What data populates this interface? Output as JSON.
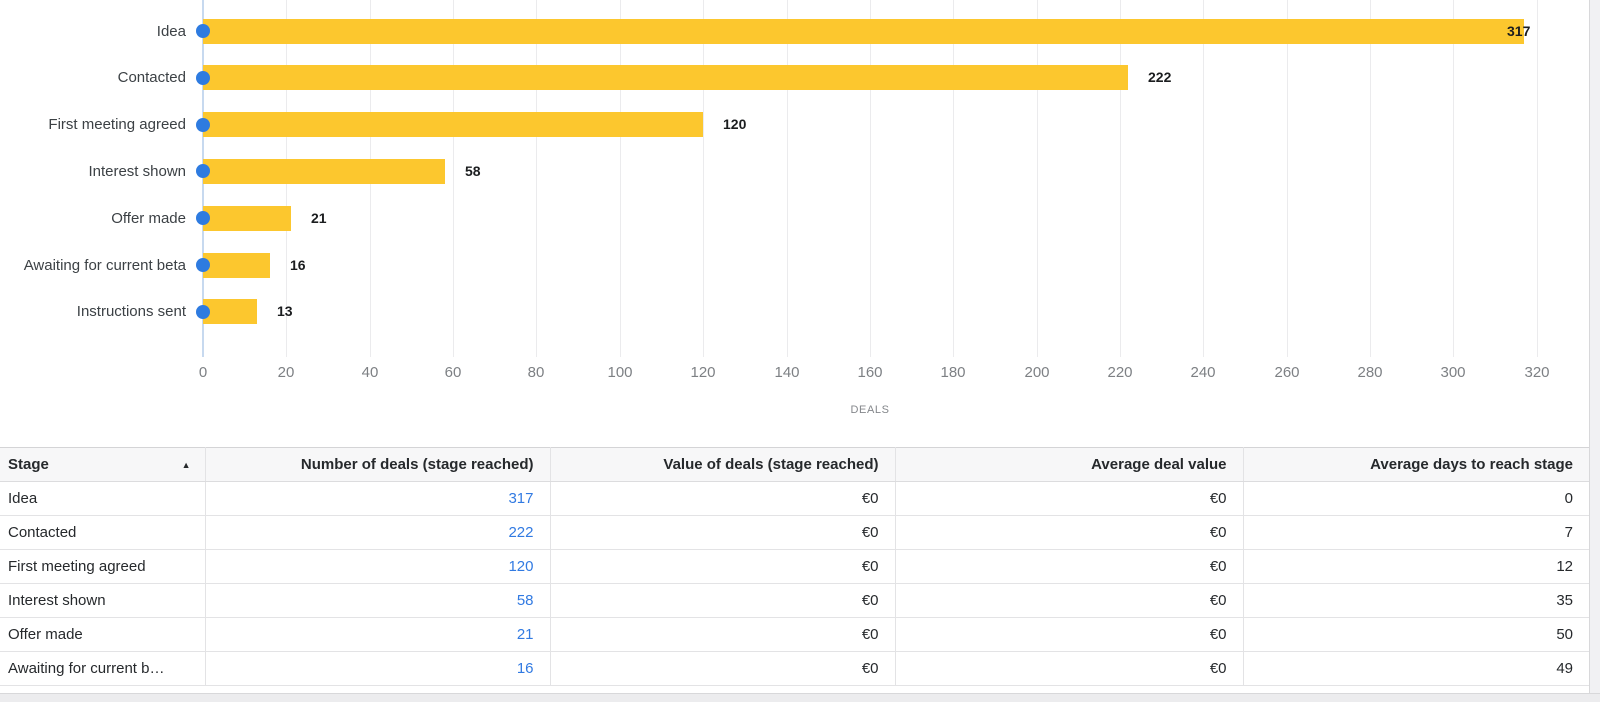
{
  "chart_data": {
    "type": "bar",
    "orientation": "horizontal",
    "title": "",
    "categories": [
      "Idea",
      "Contacted",
      "First meeting agreed",
      "Interest shown",
      "Offer made",
      "Awaiting for current beta",
      "Instructions sent"
    ],
    "values": [
      317,
      222,
      120,
      58,
      21,
      16,
      13
    ],
    "data_labels": [
      "317",
      "222",
      "120",
      "58",
      "21",
      "16",
      "13"
    ],
    "xlabel": "DEALS",
    "ylabel": "",
    "xlim": [
      0,
      320
    ],
    "x_ticks": [
      0,
      20,
      40,
      60,
      80,
      100,
      120,
      140,
      160,
      180,
      200,
      220,
      240,
      260,
      280,
      300,
      320
    ],
    "grid": true,
    "legend": false,
    "bar_color": "#FCC72E",
    "marker_color": "#2E7BE0"
  },
  "table": {
    "columns": [
      {
        "label": "Stage",
        "align": "left",
        "sorted": "asc"
      },
      {
        "label": "Number of deals (stage reached)",
        "align": "right"
      },
      {
        "label": "Value of deals (stage reached)",
        "align": "right"
      },
      {
        "label": "Average deal value",
        "align": "right"
      },
      {
        "label": "Average days to reach stage",
        "align": "right"
      }
    ],
    "sort_icon": "▲",
    "rows": [
      {
        "stage": "Idea",
        "deals": "317",
        "value": "€0",
        "avg_value": "€0",
        "avg_days": "0"
      },
      {
        "stage": "Contacted",
        "deals": "222",
        "value": "€0",
        "avg_value": "€0",
        "avg_days": "7"
      },
      {
        "stage": "First meeting agreed",
        "deals": "120",
        "value": "€0",
        "avg_value": "€0",
        "avg_days": "12"
      },
      {
        "stage": "Interest shown",
        "deals": "58",
        "value": "€0",
        "avg_value": "€0",
        "avg_days": "35"
      },
      {
        "stage": "Offer made",
        "deals": "21",
        "value": "€0",
        "avg_value": "€0",
        "avg_days": "50"
      },
      {
        "stage": "Awaiting for current b…",
        "deals": "16",
        "value": "€0",
        "avg_value": "€0",
        "avg_days": "49"
      }
    ]
  },
  "colors": {
    "bar": "#FCC72E",
    "marker": "#2E7BE0",
    "link": "#317ae2",
    "gridline": "#ebebed",
    "axis_line": "#c7d9ef",
    "header_bg": "#f7f7f8",
    "text_dark": "#26292c",
    "text_gray": "#7d8084"
  }
}
